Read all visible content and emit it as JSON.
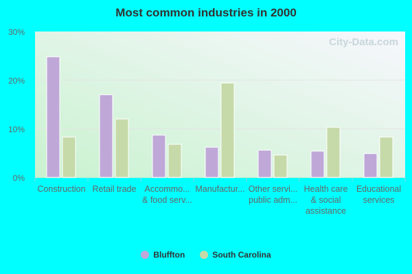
{
  "chart_data": {
    "type": "bar",
    "title": "Most common industries in 2000",
    "categories": [
      [
        "Construction"
      ],
      [
        "Retail trade"
      ],
      [
        "Accommo...",
        "& food serv..."
      ],
      [
        "Manufactur..."
      ],
      [
        "Other servi...",
        "public adm..."
      ],
      [
        "Health care",
        "& social",
        "assistance"
      ],
      [
        "Educational",
        "services"
      ]
    ],
    "series": [
      {
        "name": "Bluffton",
        "color": "#bfa8d8",
        "values": [
          24.8,
          17.0,
          8.7,
          6.2,
          5.6,
          5.4,
          4.9
        ]
      },
      {
        "name": "South Carolina",
        "color": "#c5daa8",
        "values": [
          8.3,
          12.0,
          6.8,
          19.4,
          4.6,
          10.3,
          8.3
        ]
      }
    ],
    "yticks": [
      "0%",
      "10%",
      "20%",
      "30%"
    ],
    "ylim": [
      0,
      30
    ],
    "grid": true,
    "legend": "bottom",
    "watermark": "City-Data.com"
  }
}
